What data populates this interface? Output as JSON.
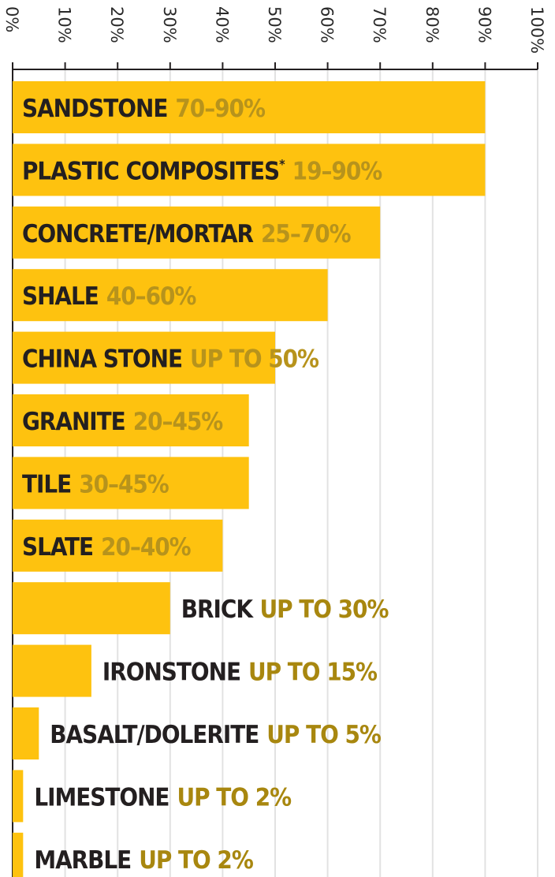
{
  "chart_data": {
    "type": "bar",
    "orientation": "horizontal",
    "x_axis_position": "top",
    "xlim": [
      0,
      100
    ],
    "x_ticks": [
      "0%",
      "10%",
      "20%",
      "30%",
      "40%",
      "50%",
      "60%",
      "70%",
      "80%",
      "90%",
      "100%"
    ],
    "grid": true,
    "colors": {
      "bar": "#fec20f",
      "name_text": "#231f20",
      "range_text_on_bar": "#b7931c",
      "range_text_outside": "#a8870f",
      "grid": "#e2e2e2",
      "axis": "#231f20"
    },
    "bars": [
      {
        "name": "SANDSTONE",
        "range": "70–90%",
        "value": 90
      },
      {
        "name": "PLASTIC COMPOSITES",
        "asterisk": "*",
        "range": "19–90%",
        "value": 90
      },
      {
        "name": "CONCRETE/MORTAR",
        "range": "25–70%",
        "value": 70
      },
      {
        "name": "SHALE",
        "range": "40–60%",
        "value": 60
      },
      {
        "name": "CHINA STONE",
        "range": "UP TO 50%",
        "value": 50
      },
      {
        "name": "GRANITE",
        "range": "20–45%",
        "value": 45
      },
      {
        "name": "TILE",
        "range": "30–45%",
        "value": 45
      },
      {
        "name": "SLATE",
        "range": "20–40%",
        "value": 40
      },
      {
        "name": "BRICK",
        "range": "UP TO 30%",
        "value": 30
      },
      {
        "name": "IRONSTONE",
        "range": "UP TO 15%",
        "value": 15
      },
      {
        "name": "BASALT/DOLERITE",
        "range": "UP TO 5%",
        "value": 5
      },
      {
        "name": "LIMESTONE",
        "range": "UP TO 2%",
        "value": 2
      },
      {
        "name": "MARBLE",
        "range": "UP TO 2%",
        "value": 2
      }
    ]
  }
}
